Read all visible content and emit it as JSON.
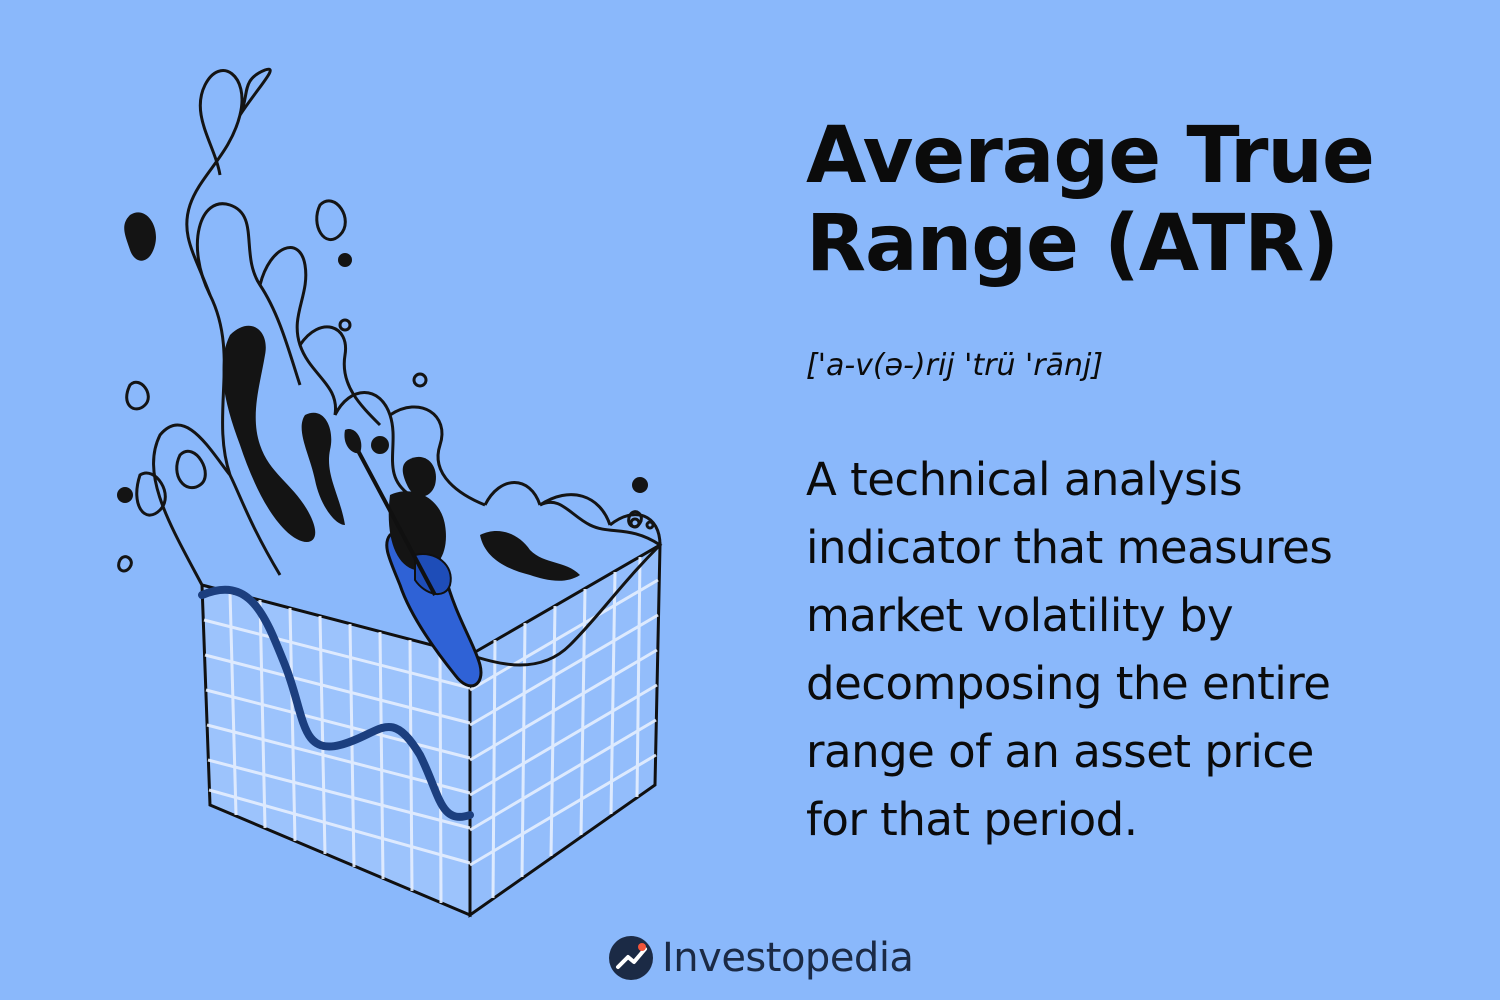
{
  "title": {
    "line1": "Average True",
    "line2": "Range (ATR)"
  },
  "pronunciation": "['a-v(ə-)rij 'trü 'rānj]",
  "definition": {
    "lines": [
      "A technical analysis",
      "indicator that measures",
      "market volatility by",
      "decomposing the entire",
      "range of an asset price",
      "for that period."
    ]
  },
  "brand": {
    "name": "Investopedia",
    "logo_icon": "investopedia-logo-icon"
  },
  "colors": {
    "background": "#8ab8fb",
    "ink": "#0b0b0b",
    "wave_line": "#1c3f7f",
    "kayak": "#2f62d6",
    "grid": "#dfeaff"
  }
}
